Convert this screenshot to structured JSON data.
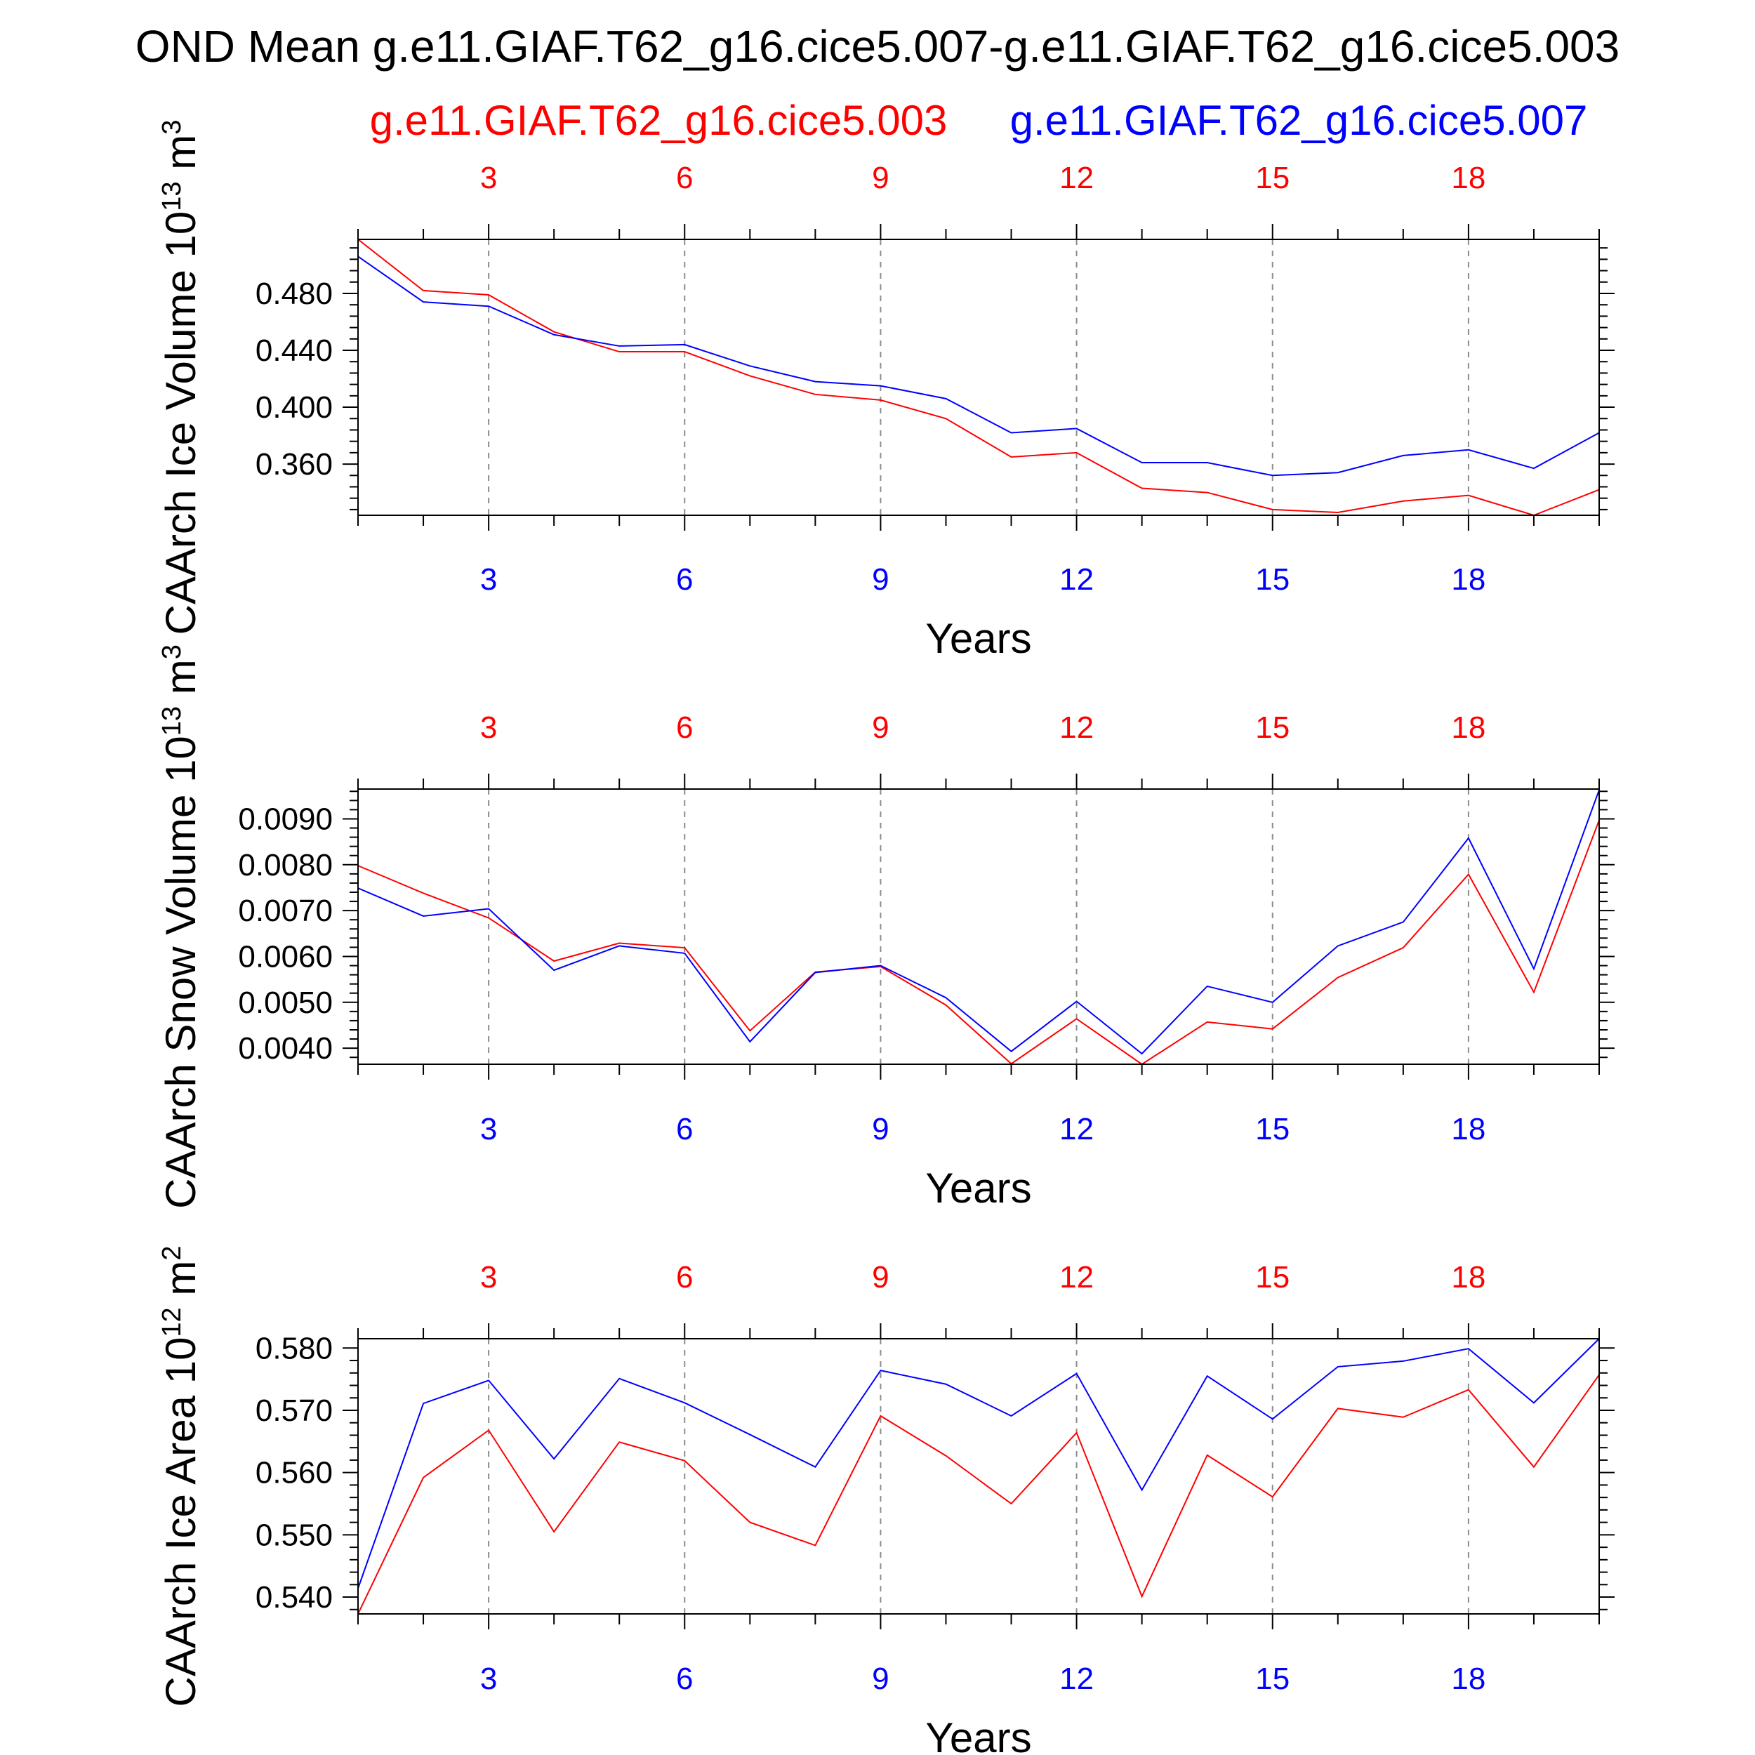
{
  "title": "OND Mean g.e11.GIAF.T62_g16.cice5.007-g.e11.GIAF.T62_g16.cice5.003",
  "legend": {
    "red_label": "g.e11.GIAF.T62_g16.cice5.003",
    "blue_label": "g.e11.GIAF.T62_g16.cice5.007"
  },
  "colors": {
    "red": "#ff0000",
    "blue": "#0000ff",
    "axis": "#000000",
    "grid": "#8c8c8c"
  },
  "chart_data": [
    {
      "type": "line",
      "ylabel_main": "CAArch Ice Volume 10",
      "ylabel_exp": "13",
      "ylabel_unit": " m",
      "ylabel_unit_exp": "3",
      "xlabel": "Years",
      "xlim": [
        1,
        20
      ],
      "ylim": [
        0.324,
        0.518
      ],
      "xticks": [
        3,
        6,
        9,
        12,
        15,
        18
      ],
      "xticklabels": [
        "3",
        "6",
        "9",
        "12",
        "15",
        "18"
      ],
      "yticks": [
        0.36,
        0.4,
        0.44,
        0.48
      ],
      "yticklabels": [
        "0.360",
        "0.400",
        "0.440",
        "0.480"
      ],
      "x": [
        1,
        2,
        3,
        4,
        5,
        6,
        7,
        8,
        9,
        10,
        11,
        12,
        13,
        14,
        15,
        16,
        17,
        18,
        19,
        20
      ],
      "series": [
        {
          "name": "g.e11.GIAF.T62_g16.cice5.003",
          "color": "#ff0000",
          "values": [
            0.518,
            0.482,
            0.479,
            0.453,
            0.439,
            0.439,
            0.422,
            0.409,
            0.405,
            0.392,
            0.365,
            0.368,
            0.343,
            0.34,
            0.328,
            0.326,
            0.334,
            0.338,
            0.324,
            0.342
          ]
        },
        {
          "name": "g.e11.GIAF.T62_g16.cice5.007",
          "color": "#0000ff",
          "values": [
            0.506,
            0.474,
            0.471,
            0.451,
            0.443,
            0.444,
            0.429,
            0.418,
            0.415,
            0.406,
            0.382,
            0.385,
            0.361,
            0.361,
            0.352,
            0.354,
            0.366,
            0.37,
            0.357,
            0.382
          ]
        }
      ]
    },
    {
      "type": "line",
      "ylabel_main": "CAArch Snow Volume 10",
      "ylabel_exp": "13",
      "ylabel_unit": " m",
      "ylabel_unit_exp": "3",
      "xlabel": "Years",
      "xlim": [
        1,
        20
      ],
      "ylim": [
        0.00365,
        0.00965
      ],
      "xticks": [
        3,
        6,
        9,
        12,
        15,
        18
      ],
      "xticklabels": [
        "3",
        "6",
        "9",
        "12",
        "15",
        "18"
      ],
      "yticks": [
        0.004,
        0.005,
        0.006,
        0.007,
        0.008,
        0.009
      ],
      "yticklabels": [
        "0.0040",
        "0.0050",
        "0.0060",
        "0.0070",
        "0.0080",
        "0.0090"
      ],
      "x": [
        1,
        2,
        3,
        4,
        5,
        6,
        7,
        8,
        9,
        10,
        11,
        12,
        13,
        14,
        15,
        16,
        17,
        18,
        19,
        20
      ],
      "series": [
        {
          "name": "g.e11.GIAF.T62_g16.cice5.003",
          "color": "#ff0000",
          "values": [
            0.00798,
            0.00738,
            0.00684,
            0.0059,
            0.00629,
            0.00619,
            0.00438,
            0.00566,
            0.00578,
            0.00494,
            0.00366,
            0.00464,
            0.00365,
            0.00457,
            0.00442,
            0.00554,
            0.00619,
            0.00779,
            0.00522,
            0.00897
          ]
        },
        {
          "name": "g.e11.GIAF.T62_g16.cice5.007",
          "color": "#0000ff",
          "values": [
            0.00749,
            0.00688,
            0.00704,
            0.0057,
            0.00623,
            0.00607,
            0.00414,
            0.00565,
            0.0058,
            0.0051,
            0.00393,
            0.00502,
            0.00388,
            0.00535,
            0.005,
            0.00623,
            0.00675,
            0.00858,
            0.00573,
            0.00963
          ]
        }
      ]
    },
    {
      "type": "line",
      "ylabel_main": "CAArch Ice Area 10",
      "ylabel_exp": "12",
      "ylabel_unit": " m",
      "ylabel_unit_exp": "2",
      "xlabel": "Years",
      "xlim": [
        1,
        20
      ],
      "ylim": [
        0.5373,
        0.5815
      ],
      "xticks": [
        3,
        6,
        9,
        12,
        15,
        18
      ],
      "xticklabels": [
        "3",
        "6",
        "9",
        "12",
        "15",
        "18"
      ],
      "yticks": [
        0.54,
        0.55,
        0.56,
        0.57,
        0.58
      ],
      "yticklabels": [
        "0.540",
        "0.550",
        "0.560",
        "0.570",
        "0.580"
      ],
      "x": [
        1,
        2,
        3,
        4,
        5,
        6,
        7,
        8,
        9,
        10,
        11,
        12,
        13,
        14,
        15,
        16,
        17,
        18,
        19,
        20
      ],
      "series": [
        {
          "name": "g.e11.GIAF.T62_g16.cice5.003",
          "color": "#ff0000",
          "values": [
            0.5373,
            0.5592,
            0.5668,
            0.5505,
            0.5649,
            0.5619,
            0.552,
            0.5483,
            0.5691,
            0.5627,
            0.555,
            0.5664,
            0.5401,
            0.5628,
            0.5561,
            0.5703,
            0.5689,
            0.5733,
            0.5609,
            0.5757
          ]
        },
        {
          "name": "g.e11.GIAF.T62_g16.cice5.007",
          "color": "#0000ff",
          "values": [
            0.5414,
            0.5711,
            0.5748,
            0.5622,
            0.5751,
            0.5712,
            0.5661,
            0.5609,
            0.5764,
            0.5742,
            0.5691,
            0.5759,
            0.5572,
            0.5755,
            0.5686,
            0.577,
            0.5779,
            0.5799,
            0.5712,
            0.5815
          ]
        }
      ]
    }
  ]
}
